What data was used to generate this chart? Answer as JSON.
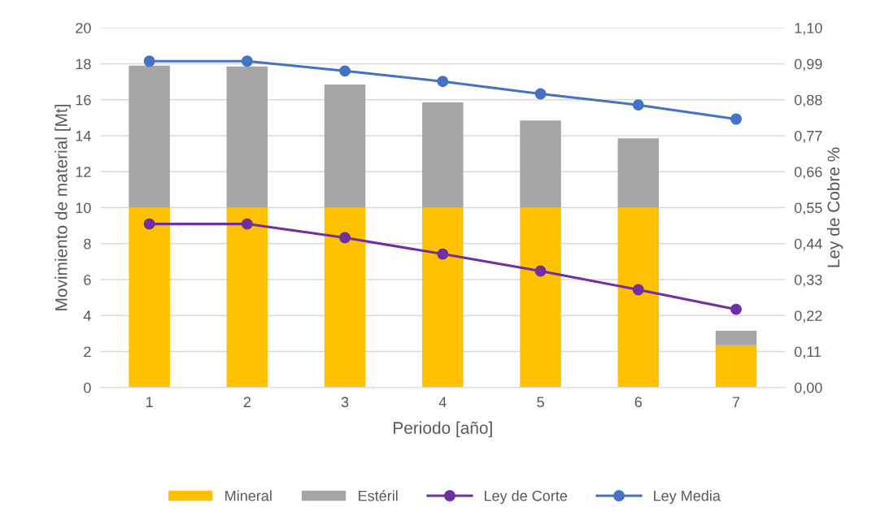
{
  "chart_data": {
    "type": "bar",
    "stacked": true,
    "xlabel": "Periodo [año]",
    "ylabel": "Movimiento de material [Mt]",
    "y2label": "Ley de Cobre %",
    "categories": [
      "1",
      "2",
      "3",
      "4",
      "5",
      "6",
      "7"
    ],
    "series": [
      {
        "name": "Mineral",
        "type": "bar",
        "color": "#ffc000",
        "values": [
          10,
          10,
          10,
          10,
          10,
          10,
          2.35
        ]
      },
      {
        "name": "Estéril",
        "type": "bar",
        "color": "#a5a5a5",
        "values": [
          7.9,
          7.85,
          6.85,
          5.85,
          4.85,
          3.85,
          0.8
        ]
      },
      {
        "name": "Ley de Corte",
        "type": "line",
        "axis": "y2",
        "color": "#7030a0",
        "values": [
          0.5,
          0.5,
          0.458,
          0.408,
          0.356,
          0.299,
          0.239
        ]
      },
      {
        "name": "Ley Media",
        "type": "line",
        "axis": "y2",
        "color": "#4472c4",
        "values": [
          0.998,
          0.998,
          0.968,
          0.936,
          0.898,
          0.864,
          0.821
        ]
      }
    ],
    "ylim": [
      0,
      20
    ],
    "yticks": [
      0,
      2,
      4,
      6,
      8,
      10,
      12,
      14,
      16,
      18,
      20
    ],
    "y2lim": [
      0,
      1.1
    ],
    "y2ticks": [
      {
        "value": 0,
        "label": "0,00"
      },
      {
        "value": 0.11,
        "label": "0,11"
      },
      {
        "value": 0.22,
        "label": "0,22"
      },
      {
        "value": 0.33,
        "label": "0,33"
      },
      {
        "value": 0.44,
        "label": "0,44"
      },
      {
        "value": 0.55,
        "label": "0,55"
      },
      {
        "value": 0.66,
        "label": "0,66"
      },
      {
        "value": 0.77,
        "label": "0,77"
      },
      {
        "value": 0.88,
        "label": "0,88"
      },
      {
        "value": 0.99,
        "label": "0,99"
      },
      {
        "value": 1.1,
        "label": "1,10"
      }
    ],
    "grid": "y",
    "legend": "bottom",
    "marker": "circle"
  }
}
